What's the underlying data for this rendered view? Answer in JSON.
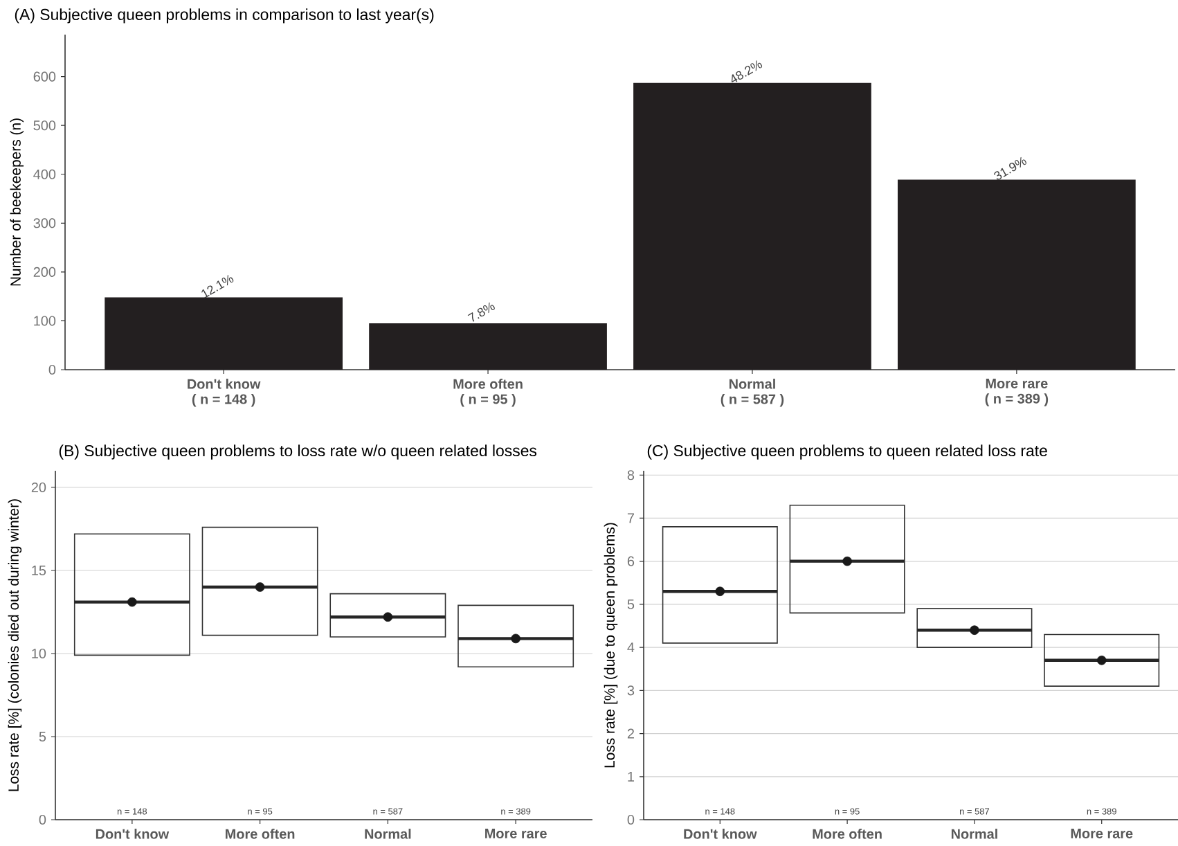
{
  "chart_data": [
    {
      "type": "bar",
      "title": "(A) Subjective queen problems in comparison to last year(s)",
      "ylabel": "Number of beekeepers (n)",
      "categories": [
        "Don't know",
        "More often",
        "Normal",
        "More rare"
      ],
      "values": [
        148,
        95,
        587,
        389
      ],
      "color": "#231f20",
      "ylim": [
        0,
        686
      ],
      "yticks": [
        0,
        100,
        200,
        300,
        400,
        500,
        600
      ],
      "annotations": [
        "( n = 148 )",
        "( n = 95 )",
        "( n = 587 )",
        "( n = 389 )",
        {
          "text": "12.1%",
          "x": "Don't know",
          "y": 148
        },
        {
          "text": "7.8%",
          "x": "More often",
          "y": 95
        },
        {
          "text": "48.2%",
          "x": "Normal",
          "y": 587
        },
        {
          "text": "31.9%",
          "x": "More rare",
          "y": 389
        }
      ]
    },
    {
      "type": "box",
      "title": "(B) Subjective queen problems to loss rate w/o queen related losses",
      "ylabel": "Loss rate [%] (colonies died out during winter)",
      "categories": [
        "Don't know",
        "More often",
        "Normal",
        "More rare"
      ],
      "color": "#333333",
      "ylim": [
        0,
        21
      ],
      "yticks": [
        0,
        5,
        10,
        15,
        20
      ],
      "grid": "y",
      "annotations": [
        "n = 148",
        "n = 95",
        "n = 587",
        "n = 389"
      ],
      "boxes": [
        {
          "low": 9.9,
          "q1": 9.9,
          "median": 13.1,
          "q3": 17.2,
          "high": 17.2,
          "mean": 13.1
        },
        {
          "low": 11.1,
          "q1": 11.1,
          "median": 14.0,
          "q3": 17.6,
          "high": 17.6,
          "mean": 14.0
        },
        {
          "low": 11.0,
          "q1": 11.0,
          "median": 12.2,
          "q3": 13.6,
          "high": 13.6,
          "mean": 12.2
        },
        {
          "low": 9.2,
          "q1": 9.2,
          "median": 10.9,
          "q3": 12.9,
          "high": 12.9,
          "mean": 10.9
        }
      ]
    },
    {
      "type": "box",
      "title": "(C) Subjective queen problems to queen related loss rate",
      "ylabel": "Loss rate [%] (due to queen problems)",
      "categories": [
        "Don't know",
        "More often",
        "Normal",
        "More rare"
      ],
      "color": "#333333",
      "ylim": [
        0,
        8.1
      ],
      "yticks": [
        0,
        1,
        2,
        3,
        4,
        5,
        6,
        7,
        8
      ],
      "grid": "y",
      "annotations": [
        "n = 148",
        "n = 95",
        "n = 587",
        "n = 389"
      ],
      "boxes": [
        {
          "low": 4.1,
          "q1": 4.1,
          "median": 5.3,
          "q3": 6.8,
          "high": 6.8,
          "mean": 5.3
        },
        {
          "low": 4.8,
          "q1": 4.8,
          "median": 6.0,
          "q3": 7.3,
          "high": 7.3,
          "mean": 6.0
        },
        {
          "low": 4.0,
          "q1": 4.0,
          "median": 4.4,
          "q3": 4.9,
          "high": 4.9,
          "mean": 4.4
        },
        {
          "low": 3.1,
          "q1": 3.1,
          "median": 3.7,
          "q3": 4.3,
          "high": 4.3,
          "mean": 3.7
        }
      ]
    }
  ]
}
